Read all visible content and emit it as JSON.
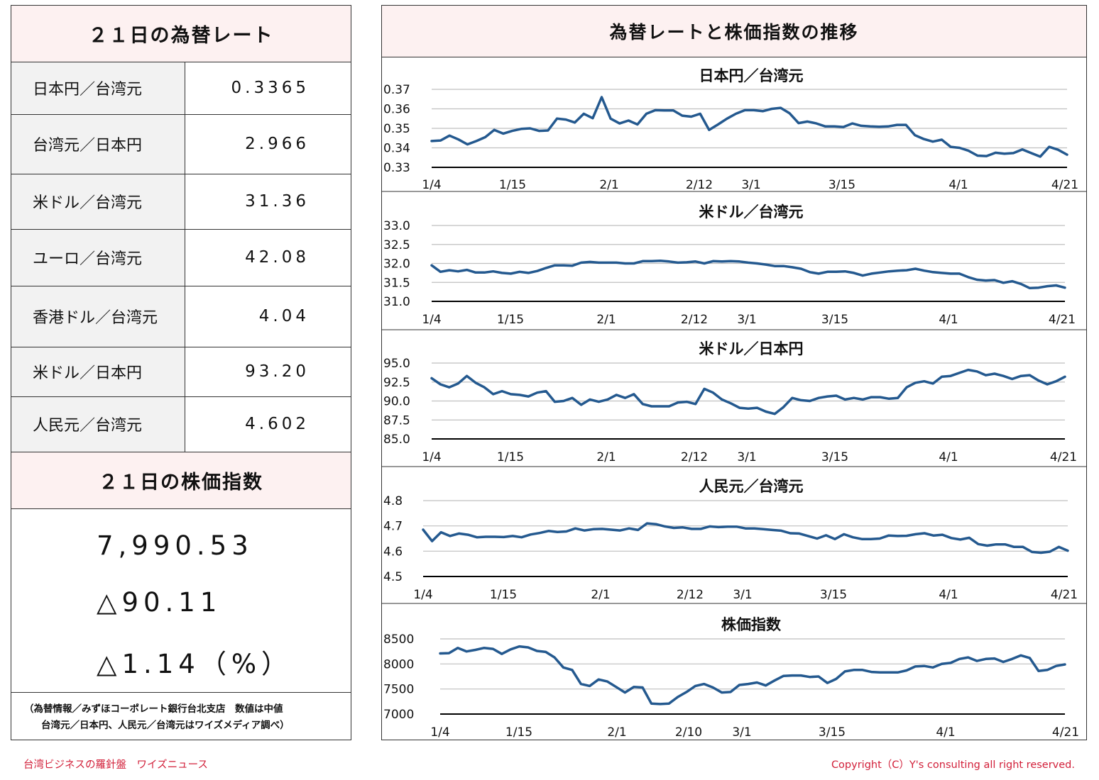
{
  "rates": {
    "title": "２１日の為替レート",
    "rows": [
      {
        "pair": "日本円／台湾元",
        "value": "0.3365"
      },
      {
        "pair": "台湾元／日本円",
        "value": "2.966"
      },
      {
        "pair": "米ドル／台湾元",
        "value": "31.36"
      },
      {
        "pair": "ユーロ／台湾元",
        "value": "42.08"
      },
      {
        "pair": "香港ドル／台湾元",
        "value": "4.04"
      },
      {
        "pair": "米ドル／日本円",
        "value": "93.20"
      },
      {
        "pair": "人民元／台湾元",
        "value": "4.602"
      }
    ]
  },
  "index": {
    "title": "２１日の株価指数",
    "value": "7,990.53",
    "change": "△90.11",
    "percent": "△1.14（%）"
  },
  "source_note": {
    "line1": "（為替情報／みずほコーポレート銀行台北支店　数値は中値",
    "line2": "台湾元／日本円、人民元／台湾元はワイズメディア調べ）"
  },
  "charts_title": "為替レートと株価指数の推移",
  "footer": {
    "left": "台湾ビジネスの羅針盤　ワイズニュース",
    "right": "Copyright（C）Y's consulting all right reserved."
  },
  "colors": {
    "line": "#24598f",
    "header_bg": "#fdf1f1",
    "footer_text": "#d2203a",
    "grid": "#bfbfbf",
    "axis": "#000000"
  },
  "chart_data": [
    {
      "type": "line",
      "title": "日本円／台湾元",
      "x_tick_labels": [
        "1/4",
        "1/15",
        "2/1",
        "2/12",
        "3/1",
        "3/15",
        "4/1",
        "4/21"
      ],
      "ylim": [
        0.33,
        0.37
      ],
      "y_ticks": [
        "0.37",
        "0.36",
        "0.35",
        "0.34",
        "0.33"
      ],
      "grid": true,
      "series": [
        {
          "values": [
            0.3435,
            0.3438,
            0.3463,
            0.3443,
            0.3418,
            0.3435,
            0.3455,
            0.3492,
            0.3473,
            0.3487,
            0.3497,
            0.35,
            0.3487,
            0.3489,
            0.355,
            0.3545,
            0.353,
            0.3575,
            0.3552,
            0.366,
            0.355,
            0.3525,
            0.354,
            0.352,
            0.3575,
            0.3593,
            0.3592,
            0.3592,
            0.3565,
            0.356,
            0.3575,
            0.3492,
            0.352,
            0.355,
            0.3575,
            0.3593,
            0.3593,
            0.3588,
            0.36,
            0.3605,
            0.3577,
            0.3527,
            0.3535,
            0.3525,
            0.351,
            0.351,
            0.3507,
            0.3525,
            0.3513,
            0.351,
            0.3508,
            0.351,
            0.3518,
            0.3518,
            0.3465,
            0.3445,
            0.3432,
            0.3442,
            0.3405,
            0.34,
            0.3385,
            0.336,
            0.3358,
            0.3375,
            0.337,
            0.3373,
            0.3392,
            0.3373,
            0.3355,
            0.3405,
            0.339,
            0.3365
          ]
        }
      ]
    },
    {
      "type": "line",
      "title": "米ドル／台湾元",
      "x_tick_labels": [
        "1/4",
        "1/15",
        "2/1",
        "2/12",
        "3/1",
        "3/15",
        "4/1",
        "4/21"
      ],
      "ylim": [
        31.0,
        33.0
      ],
      "y_ticks": [
        "33.0",
        "32.5",
        "32.0",
        "31.5",
        "31.0"
      ],
      "grid": true,
      "series": [
        {
          "values": [
            31.95,
            31.78,
            31.82,
            31.79,
            31.83,
            31.76,
            31.76,
            31.79,
            31.75,
            31.73,
            31.78,
            31.75,
            31.8,
            31.88,
            31.95,
            31.95,
            31.94,
            32.02,
            32.04,
            32.02,
            32.02,
            32.02,
            32.0,
            32.0,
            32.06,
            32.06,
            32.07,
            32.05,
            32.02,
            32.03,
            32.05,
            32.0,
            32.06,
            32.05,
            32.06,
            32.05,
            32.02,
            32.0,
            31.97,
            31.93,
            31.93,
            31.9,
            31.86,
            31.77,
            31.73,
            31.78,
            31.78,
            31.79,
            31.75,
            31.68,
            31.73,
            31.76,
            31.79,
            31.81,
            31.82,
            31.86,
            31.81,
            31.77,
            31.75,
            31.73,
            31.73,
            31.64,
            31.57,
            31.55,
            31.56,
            31.49,
            31.53,
            31.46,
            31.35,
            31.36,
            31.4,
            31.42,
            31.36
          ]
        }
      ]
    },
    {
      "type": "line",
      "title": "米ドル／日本円",
      "x_tick_labels": [
        "1/4",
        "1/15",
        "2/1",
        "2/12",
        "3/1",
        "3/15",
        "4/1",
        "4/21"
      ],
      "ylim": [
        85.0,
        95.0
      ],
      "y_ticks": [
        "95.0",
        "92.5",
        "90.0",
        "87.5",
        "85.0"
      ],
      "grid": true,
      "series": [
        {
          "values": [
            93.0,
            92.2,
            91.8,
            92.3,
            93.3,
            92.4,
            91.8,
            90.9,
            91.3,
            90.9,
            90.8,
            90.6,
            91.1,
            91.3,
            89.9,
            90.0,
            90.4,
            89.5,
            90.2,
            89.9,
            90.2,
            90.8,
            90.4,
            90.9,
            89.6,
            89.3,
            89.3,
            89.3,
            89.8,
            89.9,
            89.6,
            91.6,
            91.1,
            90.2,
            89.7,
            89.1,
            89.0,
            89.1,
            88.6,
            88.3,
            89.2,
            90.4,
            90.1,
            90.0,
            90.4,
            90.6,
            90.7,
            90.2,
            90.4,
            90.2,
            90.5,
            90.5,
            90.3,
            90.4,
            91.8,
            92.4,
            92.6,
            92.3,
            93.2,
            93.3,
            93.7,
            94.1,
            93.9,
            93.4,
            93.6,
            93.3,
            92.9,
            93.3,
            93.4,
            92.7,
            92.2,
            92.6,
            93.2
          ]
        }
      ]
    },
    {
      "type": "line",
      "title": "人民元／台湾元",
      "x_tick_labels": [
        "1/4",
        "1/15",
        "2/1",
        "2/12",
        "3/1",
        "3/15",
        "4/1",
        "4/21"
      ],
      "ylim": [
        4.5,
        4.8
      ],
      "y_ticks": [
        "4.8",
        "4.7",
        "4.6",
        "4.5"
      ],
      "grid": true,
      "series": [
        {
          "values": [
            4.685,
            4.64,
            4.675,
            4.66,
            4.67,
            4.665,
            4.655,
            4.657,
            4.657,
            4.656,
            4.66,
            4.655,
            4.666,
            4.672,
            4.68,
            4.676,
            4.678,
            4.69,
            4.682,
            4.687,
            4.688,
            4.685,
            4.682,
            4.69,
            4.684,
            4.71,
            4.707,
            4.698,
            4.692,
            4.694,
            4.688,
            4.688,
            4.698,
            4.695,
            4.697,
            4.697,
            4.69,
            4.69,
            4.687,
            4.684,
            4.681,
            4.671,
            4.67,
            4.66,
            4.65,
            4.663,
            4.648,
            4.667,
            4.655,
            4.648,
            4.648,
            4.65,
            4.662,
            4.66,
            4.661,
            4.667,
            4.671,
            4.662,
            4.665,
            4.652,
            4.646,
            4.653,
            4.628,
            4.622,
            4.627,
            4.627,
            4.617,
            4.617,
            4.597,
            4.594,
            4.598,
            4.617,
            4.602
          ]
        }
      ]
    },
    {
      "type": "line",
      "title": "株価指数",
      "x_tick_labels": [
        "1/4",
        "1/15",
        "2/1",
        "2/10",
        "3/1",
        "3/15",
        "4/1",
        "4/21"
      ],
      "ylim": [
        7000,
        8500
      ],
      "y_ticks": [
        "8500",
        "8000",
        "7500",
        "7000"
      ],
      "grid": true,
      "series": [
        {
          "values": [
            8210,
            8215,
            8320,
            8250,
            8280,
            8320,
            8300,
            8200,
            8290,
            8350,
            8330,
            8260,
            8240,
            8130,
            7930,
            7880,
            7600,
            7560,
            7690,
            7650,
            7540,
            7430,
            7540,
            7530,
            7210,
            7200,
            7210,
            7340,
            7440,
            7560,
            7600,
            7530,
            7430,
            7440,
            7580,
            7600,
            7630,
            7570,
            7670,
            7760,
            7770,
            7770,
            7740,
            7750,
            7620,
            7700,
            7850,
            7880,
            7880,
            7840,
            7830,
            7830,
            7830,
            7870,
            7950,
            7960,
            7930,
            8000,
            8020,
            8100,
            8130,
            8060,
            8100,
            8110,
            8040,
            8100,
            8170,
            8120,
            7860,
            7880,
            7960,
            7990
          ]
        }
      ]
    }
  ]
}
